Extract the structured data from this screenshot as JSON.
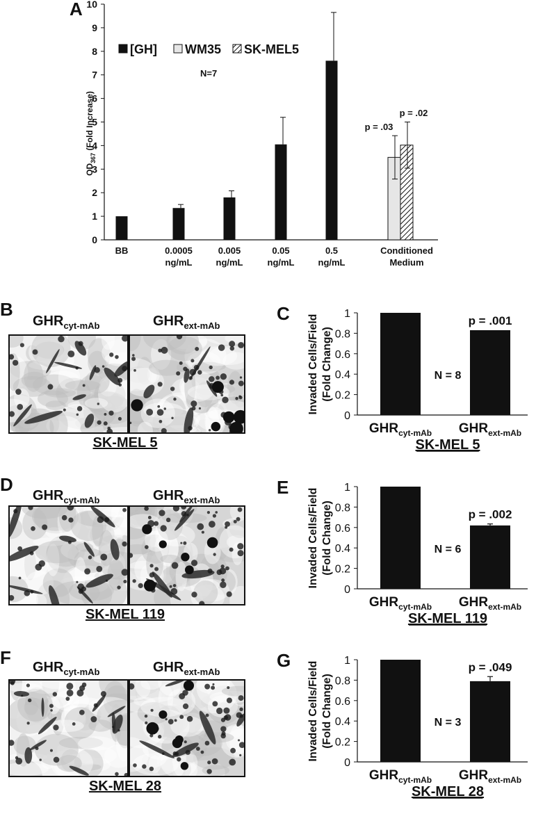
{
  "panels": {
    "A": "A",
    "B": "B",
    "C": "C",
    "D": "D",
    "E": "E",
    "F": "F",
    "G": "G"
  },
  "micrographs": [
    {
      "row": "B",
      "left_title": "GHR",
      "left_sub": "cyt-mAb",
      "right_title": "GHR",
      "right_sub": "ext-mAb",
      "cell_line": "SK-MEL 5"
    },
    {
      "row": "D",
      "left_title": "GHR",
      "left_sub": "cyt-mAb",
      "right_title": "GHR",
      "right_sub": "ext-mAb",
      "cell_line": "SK-MEL 119"
    },
    {
      "row": "F",
      "left_title": "GHR",
      "left_sub": "cyt-mAb",
      "right_title": "GHR",
      "right_sub": "ext-mAb",
      "cell_line": "SK-MEL 28"
    }
  ],
  "chart_data": [
    {
      "panel": "A",
      "type": "bar",
      "ylabel": "OD",
      "ylabel_sub": "367",
      "ylabel_suffix": " (Fold Increase)",
      "ylim": [
        0,
        10
      ],
      "yticks": [
        0,
        1,
        2,
        3,
        4,
        5,
        6,
        7,
        8,
        9,
        10
      ],
      "annotation": "N=7",
      "legend": [
        {
          "label": "[GH]",
          "fill": "#111111",
          "pattern": "solid"
        },
        {
          "label": "WM35",
          "fill": "#e6e6e6",
          "pattern": "solid"
        },
        {
          "label": "SK-MEL5",
          "fill": "#ffffff",
          "pattern": "hatch"
        }
      ],
      "categories": [
        {
          "lines": [
            "BB"
          ]
        },
        {
          "lines": [
            "0.0005",
            "ng/mL"
          ]
        },
        {
          "lines": [
            "0.005",
            "ng/mL"
          ]
        },
        {
          "lines": [
            "0.05",
            "ng/mL"
          ]
        },
        {
          "lines": [
            "0.5",
            "ng/mL"
          ]
        },
        {
          "lines": [
            "Conditioned",
            "Medium"
          ]
        }
      ],
      "series": [
        {
          "name": "[GH]",
          "values": [
            1.0,
            1.35,
            1.8,
            4.05,
            7.6,
            null
          ],
          "errors": [
            0,
            0.15,
            0.28,
            1.15,
            2.05,
            null
          ]
        },
        {
          "name": "WM35",
          "values": [
            null,
            null,
            null,
            null,
            null,
            3.5
          ],
          "errors": [
            null,
            null,
            null,
            null,
            null,
            0.92
          ]
        },
        {
          "name": "SK-MEL5",
          "values": [
            null,
            null,
            null,
            null,
            null,
            4.02
          ],
          "errors": [
            null,
            null,
            null,
            null,
            null,
            0.98
          ]
        }
      ],
      "pvalues": [
        "p = .03",
        "p = .02"
      ]
    },
    {
      "panel": "C",
      "type": "bar",
      "ylabel_lines": [
        "Invaded Cells/Field",
        "(Fold Change)"
      ],
      "ylim": [
        0,
        1
      ],
      "yticks": [
        "0",
        "0.2",
        "0.4",
        "0.6",
        "0.8",
        "1"
      ],
      "categories": [
        {
          "main": "GHR",
          "sub": "cyt-mAb"
        },
        {
          "main": "GHR",
          "sub": "ext-mAb"
        }
      ],
      "values": [
        1.0,
        0.83
      ],
      "errors": [
        0,
        0
      ],
      "pvalue": "p = .001",
      "n_label": "N = 8",
      "cell_line": "SK-MEL 5"
    },
    {
      "panel": "E",
      "type": "bar",
      "ylabel_lines": [
        "Invaded Cells/Field",
        "(Fold Change)"
      ],
      "ylim": [
        0,
        1
      ],
      "yticks": [
        "0",
        "0.2",
        "0.4",
        "0.6",
        "0.8",
        "1"
      ],
      "categories": [
        {
          "main": "GHR",
          "sub": "cyt-mAb"
        },
        {
          "main": "GHR",
          "sub": "ext-mAb"
        }
      ],
      "values": [
        1.0,
        0.62
      ],
      "errors": [
        0,
        0.015
      ],
      "pvalue": "p = .002",
      "n_label": "N = 6",
      "cell_line": "SK-MEL 119"
    },
    {
      "panel": "G",
      "type": "bar",
      "ylabel_lines": [
        "Invaded Cells/Field",
        "(Fold Change)"
      ],
      "ylim": [
        0,
        1
      ],
      "yticks": [
        "0",
        "0.2",
        "0.4",
        "0.6",
        "0.8",
        "1"
      ],
      "categories": [
        {
          "main": "GHR",
          "sub": "cyt-mAb"
        },
        {
          "main": "GHR",
          "sub": "ext-mAb"
        }
      ],
      "values": [
        1.0,
        0.79
      ],
      "errors": [
        0,
        0.045
      ],
      "pvalue": "p = .049",
      "n_label": "N = 3",
      "cell_line": "SK-MEL 28"
    }
  ]
}
